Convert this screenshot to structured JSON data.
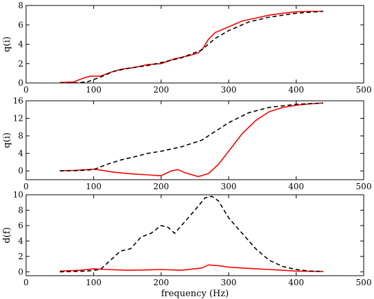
{
  "chart_data": [
    {
      "type": "line",
      "xlabel": "",
      "ylabel": "q(i)",
      "xlim": [
        0,
        500
      ],
      "ylim": [
        0,
        8
      ],
      "xticks": [
        0,
        100,
        200,
        300,
        400,
        500
      ],
      "yticks": [
        0,
        2,
        4,
        6,
        8
      ],
      "series": [
        {
          "style": "solid",
          "color": "#ff0000",
          "x": [
            50,
            70,
            85,
            95,
            110,
            125,
            140,
            160,
            180,
            200,
            220,
            240,
            255,
            262,
            270,
            280,
            300,
            320,
            340,
            360,
            380,
            400,
            420,
            440
          ],
          "y": [
            0.05,
            0.1,
            0.5,
            0.7,
            0.7,
            1.1,
            1.4,
            1.6,
            1.9,
            2.0,
            2.5,
            2.8,
            3.1,
            3.6,
            4.5,
            5.2,
            5.8,
            6.4,
            6.7,
            7.0,
            7.2,
            7.35,
            7.4,
            7.4
          ]
        },
        {
          "style": "dashed",
          "color": "#000000",
          "x": [
            50,
            70,
            90,
            110,
            130,
            150,
            180,
            200,
            230,
            260,
            280,
            300,
            330,
            360,
            400,
            440
          ],
          "y": [
            0.0,
            0.0,
            0.1,
            0.6,
            1.2,
            1.5,
            1.8,
            2.1,
            2.6,
            3.4,
            4.6,
            5.4,
            6.3,
            6.8,
            7.2,
            7.4
          ]
        }
      ]
    },
    {
      "type": "line",
      "xlabel": "",
      "ylabel": "q(i)",
      "xlim": [
        0,
        500
      ],
      "ylim": [
        -2,
        16
      ],
      "xticks": [
        0,
        100,
        200,
        300,
        400,
        500
      ],
      "yticks": [
        0,
        4,
        8,
        12,
        16
      ],
      "series": [
        {
          "style": "solid",
          "color": "#ff0000",
          "x": [
            50,
            70,
            90,
            100,
            110,
            130,
            150,
            180,
            200,
            215,
            225,
            235,
            255,
            270,
            285,
            300,
            320,
            340,
            360,
            380,
            400,
            420,
            440
          ],
          "y": [
            0.0,
            0.1,
            0.3,
            0.4,
            0.2,
            -0.3,
            -0.6,
            -0.9,
            -1.1,
            0.0,
            0.3,
            -0.4,
            -1.3,
            -0.6,
            1.5,
            4.5,
            8.5,
            11.5,
            13.5,
            14.5,
            15.0,
            15.3,
            15.5
          ]
        },
        {
          "style": "dashed",
          "color": "#000000",
          "x": [
            50,
            80,
            100,
            120,
            140,
            160,
            180,
            200,
            230,
            260,
            280,
            300,
            330,
            360,
            400,
            440
          ],
          "y": [
            0.0,
            0.1,
            0.3,
            1.5,
            2.5,
            3.2,
            4.0,
            4.5,
            5.5,
            7.0,
            9.0,
            11.0,
            13.3,
            14.5,
            15.2,
            15.5
          ]
        }
      ]
    },
    {
      "type": "line",
      "xlabel": "frequency (Hz)",
      "ylabel": "d(f)",
      "xlim": [
        0,
        500
      ],
      "ylim": [
        -0.5,
        10
      ],
      "xticks": [
        0,
        100,
        200,
        300,
        400,
        500
      ],
      "yticks": [
        0,
        2,
        4,
        6,
        8,
        10
      ],
      "series": [
        {
          "style": "solid",
          "color": "#ff0000",
          "x": [
            50,
            80,
            100,
            120,
            150,
            180,
            200,
            230,
            260,
            270,
            285,
            300,
            320,
            340,
            360,
            380,
            400,
            440
          ],
          "y": [
            0.1,
            0.2,
            0.4,
            0.3,
            0.2,
            0.25,
            0.3,
            0.2,
            0.5,
            0.9,
            0.8,
            0.6,
            0.5,
            0.4,
            0.3,
            0.2,
            0.1,
            0.05
          ]
        },
        {
          "style": "dashed",
          "color": "#000000",
          "x": [
            50,
            90,
            110,
            125,
            140,
            155,
            170,
            185,
            200,
            210,
            220,
            230,
            250,
            265,
            275,
            285,
            300,
            320,
            340,
            360,
            380,
            400,
            420,
            440
          ],
          "y": [
            0.0,
            0.1,
            0.3,
            1.5,
            2.7,
            3.0,
            4.5,
            5.0,
            6.0,
            5.8,
            5.0,
            6.0,
            8.0,
            9.6,
            9.8,
            9.2,
            7.0,
            5.0,
            3.0,
            1.5,
            0.7,
            0.3,
            0.1,
            0.05
          ]
        }
      ]
    }
  ]
}
